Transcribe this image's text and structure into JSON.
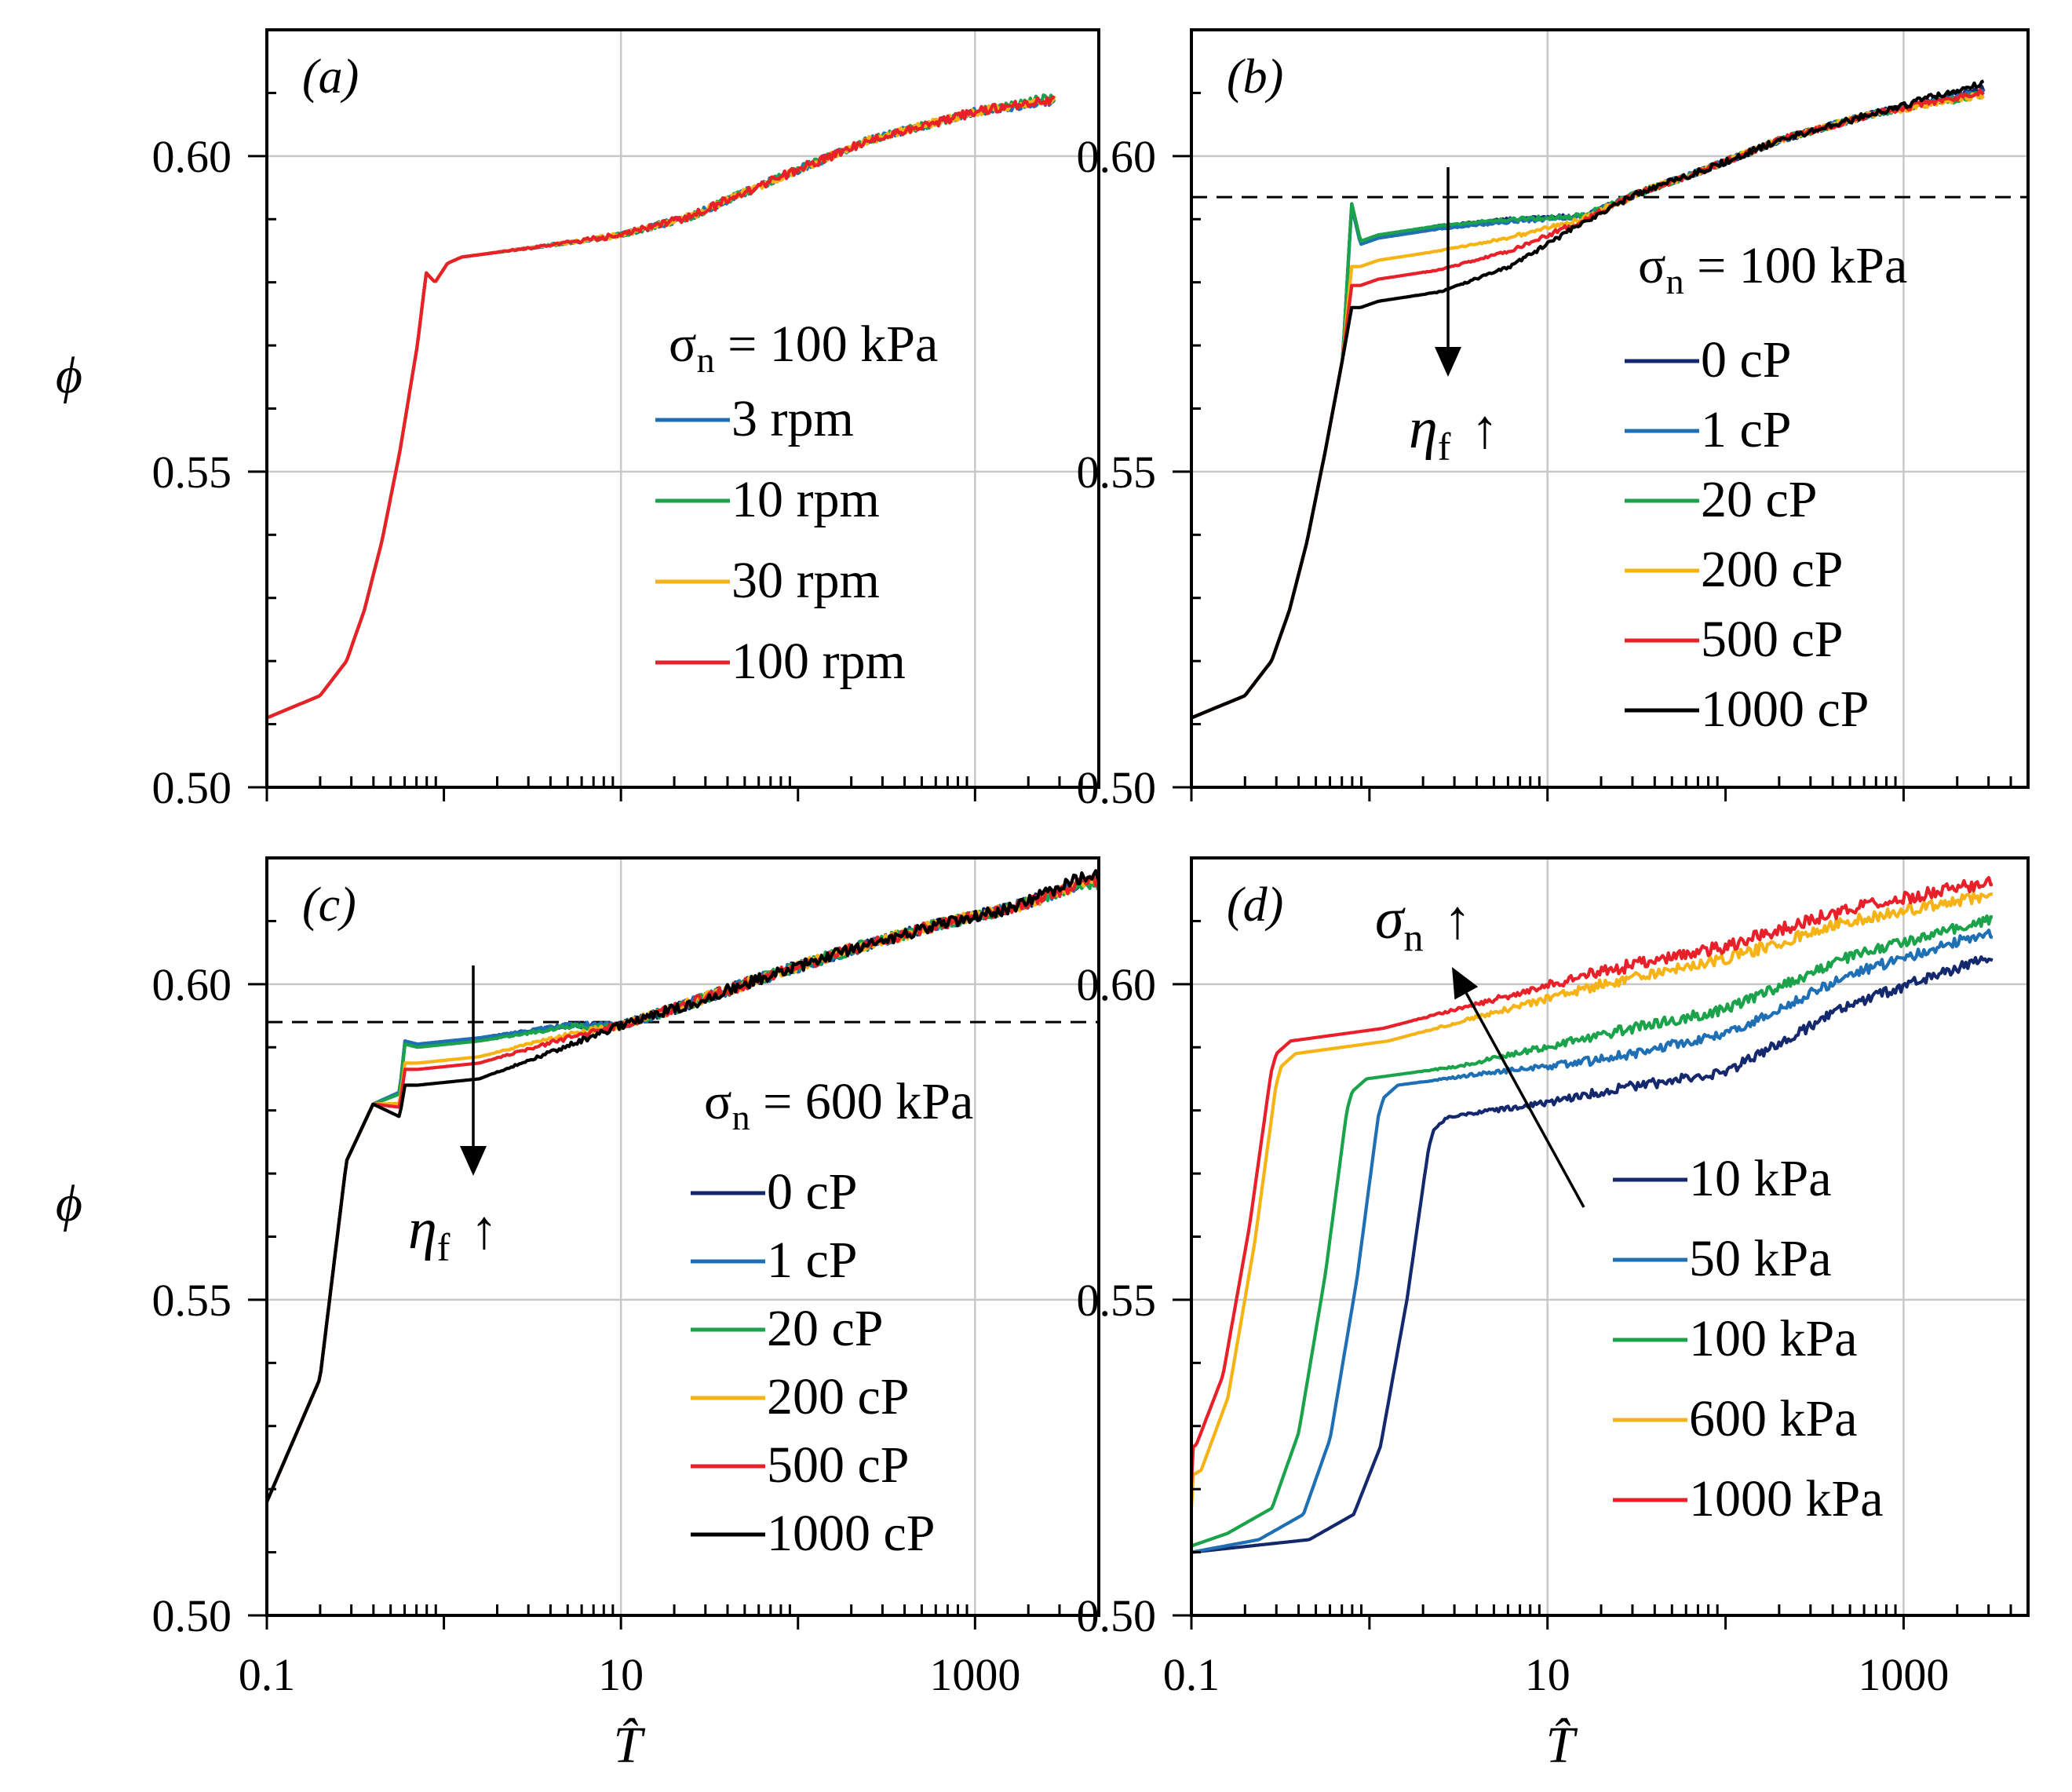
{
  "figure": {
    "ylabel": "ϕ",
    "xlabel": "T̂"
  },
  "panels": [
    {
      "label": "(a)",
      "legend_title": "σn = 100 kPa",
      "legend_title_sym": "σ",
      "legend_title_sub": "n",
      "legend_title_rest": " = 100 kPa",
      "annotation": null,
      "show_x_ticks": false,
      "dashed_line": null
    },
    {
      "label": "(b)",
      "legend_title": "σn = 100 kPa",
      "legend_title_sym": "σ",
      "legend_title_sub": "n",
      "legend_title_rest": " = 100 kPa",
      "annotation": {
        "sym": "η",
        "sub": "f",
        "arrow": "↑"
      },
      "show_x_ticks": false,
      "dashed_line": 0.5935
    },
    {
      "label": "(c)",
      "legend_title": "σn = 600 kPa",
      "legend_title_sym": "σ",
      "legend_title_sub": "n",
      "legend_title_rest": " = 600 kPa",
      "annotation": {
        "sym": "η",
        "sub": "f",
        "arrow": "↑"
      },
      "show_x_ticks": true,
      "dashed_line": 0.594
    },
    {
      "label": "(d)",
      "legend_title": null,
      "annotation": {
        "sym": "σ",
        "sub": "n",
        "arrow": "↑"
      },
      "show_x_ticks": true,
      "dashed_line": null
    }
  ],
  "chart_data": [
    {
      "type": "line",
      "panel": "(a)",
      "xscale": "log",
      "xlim": [
        0.1,
        5000
      ],
      "ylim": [
        0.5,
        0.62
      ],
      "yticks": [
        "0.60",
        "0.55",
        "0.50"
      ],
      "xticks": [
        "0.1",
        "10",
        "1000"
      ],
      "series": [
        {
          "name": "3 rpm",
          "color": "#1f6fb4",
          "profile": "base",
          "shift": 0,
          "end": 0.609,
          "noise": 0.0006
        },
        {
          "name": "10 rpm",
          "color": "#1aa34a",
          "profile": "base",
          "shift": 0,
          "end": 0.61,
          "noise": 0.0006
        },
        {
          "name": "30 rpm",
          "color": "#f5b316",
          "profile": "base",
          "shift": 0,
          "end": 0.6095,
          "noise": 0.0006
        },
        {
          "name": "100 rpm",
          "color": "#e8202a",
          "profile": "base",
          "shift": 0,
          "end": 0.6095,
          "noise": 0.0007
        }
      ]
    },
    {
      "type": "line",
      "panel": "(b)",
      "xscale": "log",
      "xlim": [
        0.1,
        5000
      ],
      "ylim": [
        0.5,
        0.62
      ],
      "yticks": [
        "0.60",
        "0.55",
        "0.50"
      ],
      "xticks": [
        "0.1",
        "10",
        "1000"
      ],
      "series": [
        {
          "name": "0 cP",
          "color": "#14286e",
          "profile": "visc",
          "plateau": 0.5885,
          "end": 0.611,
          "noise": 0.0005
        },
        {
          "name": "1 cP",
          "color": "#1f6fb4",
          "profile": "visc",
          "plateau": 0.588,
          "end": 0.6105,
          "noise": 0.0005
        },
        {
          "name": "20 cP",
          "color": "#1aa34a",
          "profile": "visc",
          "plateau": 0.5885,
          "end": 0.61,
          "noise": 0.0005
        },
        {
          "name": "200 cP",
          "color": "#f5b316",
          "profile": "visc",
          "plateau": 0.5845,
          "end": 0.61,
          "noise": 0.0005
        },
        {
          "name": "500 cP",
          "color": "#e8202a",
          "profile": "visc",
          "plateau": 0.5815,
          "end": 0.6105,
          "noise": 0.0005
        },
        {
          "name": "1000 cP",
          "color": "#000000",
          "profile": "visc",
          "plateau": 0.578,
          "end": 0.612,
          "noise": 0.0005
        }
      ]
    },
    {
      "type": "line",
      "panel": "(c)",
      "xscale": "log",
      "xlim": [
        0.1,
        5000
      ],
      "ylim": [
        0.5,
        0.62
      ],
      "yticks": [
        "0.60",
        "0.55",
        "0.50"
      ],
      "xticks": [
        "0.1",
        "10",
        "1000"
      ],
      "series": [
        {
          "name": "0 cP",
          "color": "#14286e",
          "profile": "visc600",
          "plateau": 0.5905,
          "end": 0.6165,
          "noise": 0.0009
        },
        {
          "name": "1 cP",
          "color": "#1f6fb4",
          "profile": "visc600",
          "plateau": 0.5905,
          "end": 0.6165,
          "noise": 0.0009
        },
        {
          "name": "20 cP",
          "color": "#1aa34a",
          "profile": "visc600",
          "plateau": 0.59,
          "end": 0.616,
          "noise": 0.0009
        },
        {
          "name": "200 cP",
          "color": "#f5b316",
          "profile": "visc600",
          "plateau": 0.5875,
          "end": 0.6165,
          "noise": 0.0009
        },
        {
          "name": "500 cP",
          "color": "#e8202a",
          "profile": "visc600",
          "plateau": 0.5865,
          "end": 0.6165,
          "noise": 0.0009
        },
        {
          "name": "1000 cP",
          "color": "#000000",
          "profile": "visc600",
          "plateau": 0.584,
          "end": 0.6175,
          "noise": 0.0009
        }
      ]
    },
    {
      "type": "line",
      "panel": "(d)",
      "xscale": "log",
      "xlim": [
        0.1,
        5000
      ],
      "ylim": [
        0.5,
        0.62
      ],
      "yticks": [
        "0.60",
        "0.55",
        "0.50"
      ],
      "xticks": [
        "0.1",
        "10",
        "1000"
      ],
      "series": [
        {
          "name": "10 kPa",
          "color": "#14286e",
          "profile": "press",
          "start": 0.51,
          "knee": 2.3,
          "plateau": 0.577,
          "mid": 0.586,
          "end": 0.604,
          "noise": 0.0008
        },
        {
          "name": "50 kPa",
          "color": "#1f6fb4",
          "profile": "press",
          "start": 0.51,
          "knee": 1.2,
          "plateau": 0.582,
          "mid": 0.592,
          "end": 0.608,
          "noise": 0.0008
        },
        {
          "name": "100 kPa",
          "color": "#1aa34a",
          "profile": "press",
          "start": 0.511,
          "knee": 0.8,
          "plateau": 0.583,
          "mid": 0.596,
          "end": 0.61,
          "noise": 0.0008
        },
        {
          "name": "600 kPa",
          "color": "#f5b316",
          "profile": "press",
          "start": 0.517,
          "knee": 0.32,
          "plateau": 0.587,
          "mid": 0.604,
          "end": 0.614,
          "noise": 0.0009
        },
        {
          "name": "1000 kPa",
          "color": "#e8202a",
          "profile": "press",
          "start": 0.521,
          "knee": 0.3,
          "plateau": 0.589,
          "mid": 0.606,
          "end": 0.616,
          "noise": 0.001
        }
      ]
    }
  ]
}
